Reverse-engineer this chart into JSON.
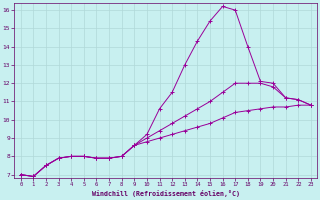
{
  "bg_color": "#c8f0f0",
  "grid_color": "#b0d8d8",
  "line_color": "#990099",
  "xlabel": "Windchill (Refroidissement éolien,°C)",
  "ylim": [
    6.8,
    16.4
  ],
  "xlim": [
    -0.5,
    23.5
  ],
  "yticks": [
    7,
    8,
    9,
    10,
    11,
    12,
    13,
    14,
    15,
    16
  ],
  "xticks": [
    0,
    1,
    2,
    3,
    4,
    5,
    6,
    7,
    8,
    9,
    10,
    11,
    12,
    13,
    14,
    15,
    16,
    17,
    18,
    19,
    20,
    21,
    22,
    23
  ],
  "series": [
    [
      7.0,
      6.9,
      7.5,
      7.9,
      8.0,
      8.0,
      7.9,
      7.9,
      8.0,
      8.6,
      9.2,
      10.6,
      11.5,
      13.0,
      14.3,
      15.4,
      16.2,
      16.0,
      14.0,
      12.1,
      12.0,
      11.2,
      11.1,
      10.8
    ],
    [
      7.0,
      6.9,
      7.5,
      7.9,
      8.0,
      8.0,
      7.9,
      7.9,
      8.0,
      8.6,
      9.0,
      9.4,
      9.8,
      10.2,
      10.6,
      11.0,
      11.5,
      12.0,
      12.0,
      12.0,
      11.8,
      11.2,
      11.1,
      10.8
    ],
    [
      7.0,
      6.9,
      7.5,
      7.9,
      8.0,
      8.0,
      7.9,
      7.9,
      8.0,
      8.6,
      8.8,
      9.0,
      9.2,
      9.4,
      9.6,
      9.8,
      10.1,
      10.4,
      10.5,
      10.6,
      10.7,
      10.7,
      10.8,
      10.8
    ]
  ]
}
